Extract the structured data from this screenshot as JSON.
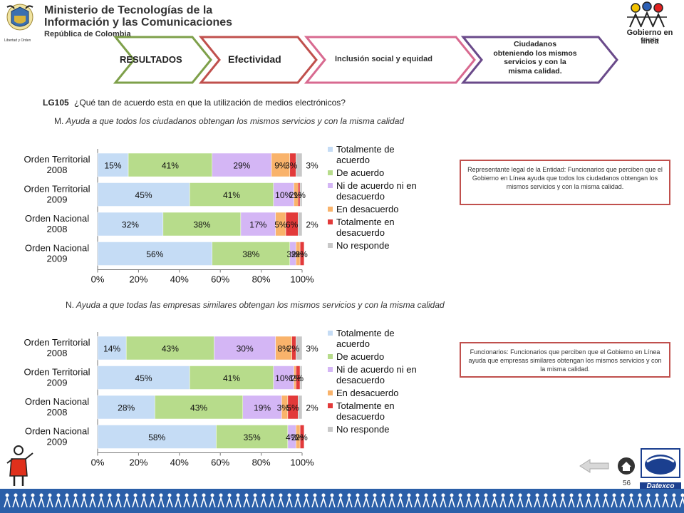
{
  "header": {
    "ministry_line1": "Ministerio de Tecnologías de la",
    "ministry_line2": "Información y las Comunicaciones",
    "ministry_line3": "República de Colombia",
    "crest_caption": "Libertad y Orden",
    "gel_logo_text": "Gobierno en línea",
    "gel_logo_sub": "Colombia"
  },
  "nav": {
    "tab1": "RESULTADOS",
    "tab2": "Efectividad",
    "tab3": "Inclusión social y equidad",
    "tab4_lines": [
      "Ciudadanos",
      "obteniendo los mismos",
      "servicios y con la",
      "misma calidad."
    ]
  },
  "question": {
    "code": "LG105",
    "text": "¿Qué  tan de acuerdo esta en que la utilización de medios electrónicos?"
  },
  "section_m": {
    "prefix": "M.",
    "title": "Ayuda a que todos los ciudadanos obtengan los mismos servicios y con la misma calidad",
    "callout": "Representante legal de la Entidad: Funcionarios que perciben que el Gobierno en Línea ayuda que todos los ciudadanos obtengan los mismos servicios y con la misma calidad."
  },
  "section_n": {
    "prefix": "N.",
    "title": "Ayuda a que todas las empresas similares obtengan los mismos servicios y con la misma calidad",
    "callout": "Funcionarios: Funcionarios que perciben que el Gobierno en Línea ayuda que empresas similares obtengan los mismos servicios y con la misma calidad."
  },
  "colors": {
    "Totalmente de acuerdo": "#c5dcf5",
    "De acuerdo": "#b7dc8b",
    "Ni de acuerdo ni en desacuerdo": "#d4b6f5",
    "En desacuerdo": "#f9b36b",
    "Totalmente en desacuerdo": "#e23a3a",
    "No responde": "#c8c8c8"
  },
  "chart_data": [
    {
      "type": "bar",
      "orientation": "horizontal-stacked-100",
      "categories": [
        [
          "Orden Territorial",
          "2008"
        ],
        [
          "Orden Territorial",
          "2009"
        ],
        [
          "Orden Nacional",
          "2008"
        ],
        [
          "Orden Nacional",
          "2009"
        ]
      ],
      "xlim": [
        0,
        100
      ],
      "xticks": [
        "0%",
        "20%",
        "40%",
        "60%",
        "80%",
        "100%"
      ],
      "legend_position": "right",
      "series": [
        {
          "name": "Totalmente de acuerdo",
          "values": [
            15,
            45,
            32,
            56
          ],
          "labels": [
            "15%",
            "45%",
            "32%",
            "56%"
          ]
        },
        {
          "name": "De acuerdo",
          "values": [
            41,
            41,
            38,
            38
          ],
          "labels": [
            "41%",
            "41%",
            "38%",
            "38%"
          ]
        },
        {
          "name": "Ni de acuerdo ni en desacuerdo",
          "values": [
            29,
            10,
            17,
            3
          ],
          "labels": [
            "29%",
            "10%",
            "17%",
            "3%"
          ]
        },
        {
          "name": "En desacuerdo",
          "values": [
            9,
            2,
            5,
            2
          ],
          "labels": [
            "9%",
            "2%",
            "5%",
            "2%"
          ]
        },
        {
          "name": "Totalmente en desacuerdo",
          "values": [
            3,
            1,
            6,
            2
          ],
          "labels": [
            "3%",
            "1%",
            "6%",
            "2%"
          ]
        },
        {
          "name": "No responde",
          "values": [
            3,
            1,
            2,
            0
          ],
          "labels": [
            "3%",
            "",
            "2%",
            ""
          ]
        }
      ]
    },
    {
      "type": "bar",
      "orientation": "horizontal-stacked-100",
      "categories": [
        [
          "Orden Territorial",
          "2008"
        ],
        [
          "Orden Territorial",
          "2009"
        ],
        [
          "Orden Nacional",
          "2008"
        ],
        [
          "Orden Nacional",
          "2009"
        ]
      ],
      "xlim": [
        0,
        100
      ],
      "xticks": [
        "0%",
        "20%",
        "40%",
        "60%",
        "80%",
        "100%"
      ],
      "legend_position": "right",
      "series": [
        {
          "name": "Totalmente de acuerdo",
          "values": [
            14,
            45,
            28,
            58
          ],
          "labels": [
            "14%",
            "45%",
            "28%",
            "58%"
          ]
        },
        {
          "name": "De acuerdo",
          "values": [
            43,
            41,
            43,
            35
          ],
          "labels": [
            "43%",
            "41%",
            "43%",
            "35%"
          ]
        },
        {
          "name": "Ni de acuerdo ni en desacuerdo",
          "values": [
            30,
            10,
            19,
            4
          ],
          "labels": [
            "30%",
            "10%",
            "19%",
            "4%"
          ]
        },
        {
          "name": "En desacuerdo",
          "values": [
            8,
            1,
            3,
            2
          ],
          "labels": [
            "8%",
            "1%",
            "3%",
            "2%"
          ]
        },
        {
          "name": "Totalmente en desacuerdo",
          "values": [
            2,
            2,
            5,
            2
          ],
          "labels": [
            "2%",
            "2%",
            "5%",
            "2%"
          ]
        },
        {
          "name": "No responde",
          "values": [
            3,
            1,
            2,
            0
          ],
          "labels": [
            "3%",
            "",
            "2%",
            ""
          ]
        }
      ]
    }
  ],
  "legend_lines": [
    [
      "Totalmente  de",
      "acuerdo"
    ],
    [
      "De acuerdo"
    ],
    [
      "Ni de acuerdo  ni en",
      "desacuerdo"
    ],
    [
      " En desacuerdo"
    ],
    [
      "Totalmente en",
      "desacuerdo"
    ],
    [
      "No responde"
    ]
  ],
  "footer": {
    "page_number": "56",
    "datexco_label": "Datexco"
  }
}
